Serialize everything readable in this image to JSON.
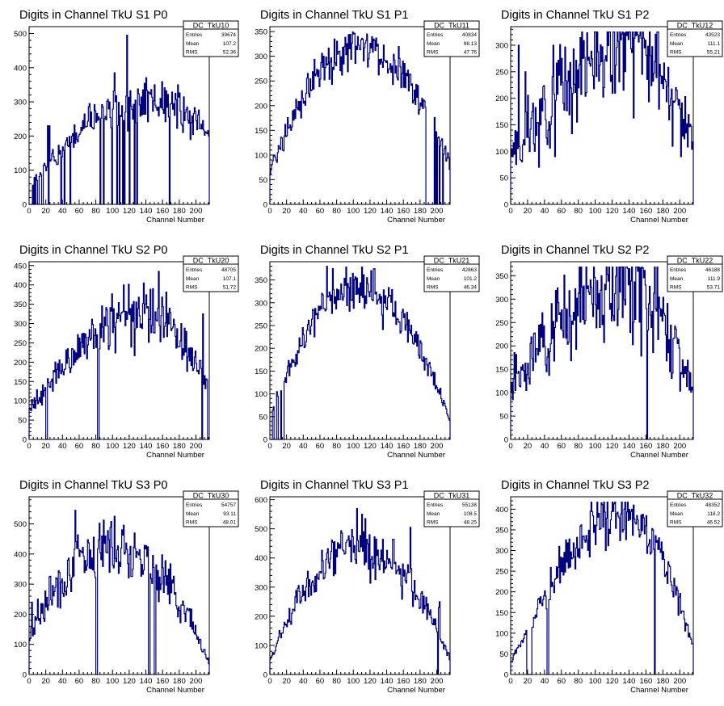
{
  "chart_data": [
    {
      "type": "histogram",
      "histogram": "DC_TkU10",
      "title": "Digits in Channel TkU S1 P0",
      "xlabel": "Channel Number",
      "ylabel": "",
      "xlim": [
        0,
        216
      ],
      "ylim": [
        0,
        520
      ],
      "xticks": [
        0,
        20,
        40,
        60,
        80,
        100,
        120,
        140,
        160,
        180,
        200
      ],
      "yticks": [
        0,
        100,
        200,
        300,
        400,
        500
      ],
      "stats": {
        "name": "DC_TkU10",
        "entries": "39674",
        "mean": "107.2",
        "rms": "52.36"
      },
      "shape": "rise",
      "p0": 50,
      "p1": 300,
      "p2": 200,
      "noise": 0.12,
      "seed": 1,
      "spikes": [
        [
          5,
          0
        ],
        [
          7,
          0
        ],
        [
          10,
          0
        ],
        [
          11,
          0
        ],
        [
          15,
          0
        ],
        [
          16,
          0
        ],
        [
          23,
          0
        ],
        [
          38,
          0
        ],
        [
          42,
          0
        ],
        [
          49,
          0
        ],
        [
          85,
          0
        ],
        [
          89,
          0
        ],
        [
          99,
          0
        ],
        [
          105,
          0
        ],
        [
          108,
          0
        ],
        [
          112,
          0
        ],
        [
          114,
          0
        ],
        [
          120,
          0
        ],
        [
          126,
          0
        ],
        [
          129,
          0
        ],
        [
          168,
          0
        ],
        [
          102,
          385
        ],
        [
          117,
          495
        ],
        [
          72,
          295
        ],
        [
          88,
          285
        ],
        [
          22,
          230
        ],
        [
          24,
          230
        ]
      ],
      "zero_ranges": [
        [
          0,
          3
        ]
      ]
    },
    {
      "type": "histogram",
      "histogram": "DC_TkU11",
      "title": "Digits in Channel TkU S1 P1",
      "xlabel": "Channel Number",
      "ylabel": "",
      "xlim": [
        0,
        216
      ],
      "ylim": [
        0,
        360
      ],
      "xticks": [
        0,
        20,
        40,
        60,
        80,
        100,
        120,
        140,
        160,
        180,
        200
      ],
      "yticks": [
        0,
        50,
        100,
        150,
        200,
        250,
        300,
        350
      ],
      "stats": {
        "name": "DC_TkU11",
        "entries": "40834",
        "mean": "98.13",
        "rms": "47.76"
      },
      "shape": "arch",
      "p0": 70,
      "p1": 315,
      "p2": 80,
      "noise": 0.08,
      "seed": 2,
      "spikes": [
        [
          100,
          345
        ],
        [
          105,
          340
        ],
        [
          198,
          0
        ],
        [
          200,
          0
        ],
        [
          203,
          0
        ],
        [
          207,
          0
        ]
      ],
      "zero_ranges": [
        [
          187,
          196
        ]
      ]
    },
    {
      "type": "histogram",
      "histogram": "DC_TkU12",
      "title": "Digits in Channel TkU S1 P2",
      "xlabel": "Channel Number",
      "ylabel": "",
      "xlim": [
        0,
        216
      ],
      "ylim": [
        0,
        335
      ],
      "xticks": [
        0,
        20,
        40,
        60,
        80,
        100,
        120,
        140,
        160,
        180,
        200
      ],
      "yticks": [
        0,
        50,
        100,
        150,
        200,
        250,
        300
      ],
      "stats": {
        "name": "DC_TkU12",
        "entries": "43523",
        "mean": "111.1",
        "rms": "55.21"
      },
      "shape": "rise",
      "p0": 90,
      "p1": 300,
      "p2": 110,
      "noise": 0.18,
      "seed": 3,
      "spikes": [
        [
          9,
          300
        ],
        [
          13,
          80
        ],
        [
          17,
          250
        ],
        [
          28,
          100
        ],
        [
          33,
          70
        ],
        [
          50,
          300
        ],
        [
          52,
          90
        ],
        [
          2,
          90
        ],
        [
          130,
          310
        ],
        [
          150,
          320
        ]
      ],
      "zero_ranges": []
    },
    {
      "type": "histogram",
      "histogram": "DC_TkU20",
      "title": "Digits in Channel TkU S2 P0",
      "xlabel": "Channel Number",
      "ylabel": "",
      "xlim": [
        0,
        216
      ],
      "ylim": [
        0,
        460
      ],
      "xticks": [
        0,
        20,
        40,
        60,
        80,
        100,
        120,
        140,
        160,
        180,
        200
      ],
      "yticks": [
        0,
        50,
        100,
        150,
        200,
        250,
        300,
        350,
        400,
        450
      ],
      "stats": {
        "name": "DC_TkU20",
        "entries": "48705",
        "mean": "107.1",
        "rms": "51.72"
      },
      "shape": "rise",
      "p0": 80,
      "p1": 320,
      "p2": 130,
      "noise": 0.12,
      "seed": 4,
      "spikes": [
        [
          20,
          0
        ],
        [
          21,
          0
        ],
        [
          82,
          0
        ],
        [
          83,
          0
        ],
        [
          113,
          400
        ],
        [
          137,
          405
        ],
        [
          155,
          435
        ],
        [
          207,
          0
        ],
        [
          208,
          325
        ],
        [
          214,
          0
        ],
        [
          215,
          0
        ],
        [
          210,
          165
        ]
      ],
      "zero_ranges": []
    },
    {
      "type": "histogram",
      "histogram": "DC_TkU21",
      "title": "Digits in Channel TkU S2 P1",
      "xlabel": "Channel Number",
      "ylabel": "",
      "xlim": [
        0,
        216
      ],
      "ylim": [
        0,
        390
      ],
      "xticks": [
        0,
        20,
        40,
        60,
        80,
        100,
        120,
        140,
        160,
        180,
        200
      ],
      "yticks": [
        0,
        50,
        100,
        150,
        200,
        250,
        300,
        350
      ],
      "stats": {
        "name": "DC_TkU21",
        "entries": "42863",
        "mean": "101.2",
        "rms": "46.34"
      },
      "shape": "arch",
      "p0": 50,
      "p1": 330,
      "p2": 35,
      "noise": 0.08,
      "seed": 5,
      "spikes": [
        [
          68,
          380
        ],
        [
          75,
          375
        ]
      ],
      "zero_ranges": [
        [
          0,
          2
        ],
        [
          5,
          7
        ],
        [
          10,
          12
        ],
        [
          14,
          16
        ]
      ]
    },
    {
      "type": "histogram",
      "histogram": "DC_TkU22",
      "title": "Digits in Channel TkU S2 P2",
      "xlabel": "Channel Number",
      "ylabel": "",
      "xlim": [
        0,
        216
      ],
      "ylim": [
        0,
        380
      ],
      "xticks": [
        0,
        20,
        40,
        60,
        80,
        100,
        120,
        140,
        160,
        180,
        200
      ],
      "yticks": [
        0,
        50,
        100,
        150,
        200,
        250,
        300,
        350
      ],
      "stats": {
        "name": "DC_TkU22",
        "entries": "46188",
        "mean": "111.9",
        "rms": "53.71"
      },
      "shape": "rise",
      "p0": 120,
      "p1": 330,
      "p2": 90,
      "noise": 0.18,
      "seed": 6,
      "spikes": [
        [
          161,
          0
        ],
        [
          140,
          365
        ],
        [
          2,
          85
        ]
      ],
      "zero_ranges": []
    },
    {
      "type": "histogram",
      "histogram": "DC_TkU30",
      "title": "Digits in Channel TkU S3 P0",
      "xlabel": "Channel Number",
      "ylabel": "",
      "xlim": [
        0,
        216
      ],
      "ylim": [
        0,
        590
      ],
      "xticks": [
        0,
        20,
        40,
        60,
        80,
        100,
        120,
        140,
        160,
        180,
        200
      ],
      "yticks": [
        0,
        100,
        200,
        300,
        400,
        500
      ],
      "stats": {
        "name": "DC_TkU30",
        "entries": "54757",
        "mean": "93.11",
        "rms": "48.01"
      },
      "shape": "arch",
      "p0": 130,
      "p1": 430,
      "p2": 35,
      "noise": 0.12,
      "seed": 7,
      "spikes": [
        [
          55,
          545
        ],
        [
          80,
          0
        ],
        [
          81,
          0
        ],
        [
          143,
          0
        ],
        [
          144,
          0
        ],
        [
          150,
          0
        ],
        [
          151,
          0
        ],
        [
          3,
          240
        ],
        [
          10,
          250
        ]
      ],
      "zero_ranges": []
    },
    {
      "type": "histogram",
      "histogram": "DC_TkU31",
      "title": "Digits in Channel TkU S3 P1",
      "xlabel": "Channel Number",
      "ylabel": "",
      "xlim": [
        0,
        216
      ],
      "ylim": [
        0,
        610
      ],
      "xticks": [
        0,
        20,
        40,
        60,
        80,
        100,
        120,
        140,
        160,
        180,
        200
      ],
      "yticks": [
        0,
        100,
        200,
        300,
        400,
        500,
        600
      ],
      "stats": {
        "name": "DC_TkU31",
        "entries": "55138",
        "mean": "108.5",
        "rms": "48.25"
      },
      "shape": "arch",
      "p0": 50,
      "p1": 430,
      "p2": 50,
      "noise": 0.1,
      "seed": 8,
      "spikes": [
        [
          104,
          570
        ],
        [
          110,
          550
        ],
        [
          168,
          505
        ],
        [
          201,
          0
        ],
        [
          202,
          230
        ],
        [
          203,
          250
        ]
      ],
      "zero_ranges": []
    },
    {
      "type": "histogram",
      "histogram": "DC_TkU32",
      "title": "Digits in Channel TkU S3 P2",
      "xlabel": "Channel Number",
      "ylabel": "",
      "xlim": [
        0,
        216
      ],
      "ylim": [
        0,
        430
      ],
      "xticks": [
        0,
        20,
        40,
        60,
        80,
        100,
        120,
        140,
        160,
        180,
        200
      ],
      "yticks": [
        0,
        50,
        100,
        150,
        200,
        250,
        300,
        350,
        400
      ],
      "stats": {
        "name": "DC_TkU32",
        "entries": "48352",
        "mean": "118.2",
        "rms": "46.52"
      },
      "shape": "rise",
      "p0": 30,
      "p1": 380,
      "p2": 60,
      "noise": 0.1,
      "seed": 9,
      "spikes": [
        [
          43,
          0
        ],
        [
          44,
          0
        ],
        [
          170,
          0
        ],
        [
          19,
          0
        ],
        [
          20,
          0
        ],
        [
          57,
          310
        ],
        [
          145,
          410
        ]
      ],
      "zero_ranges": [
        [
          21,
          24
        ]
      ]
    }
  ],
  "colors": {
    "line": "#00007f",
    "axis": "#000000",
    "frame": "#000000",
    "background": "#ffffff"
  },
  "stat_labels": {
    "entries": "Entries",
    "mean": "Mean",
    "rms": "RMS"
  }
}
